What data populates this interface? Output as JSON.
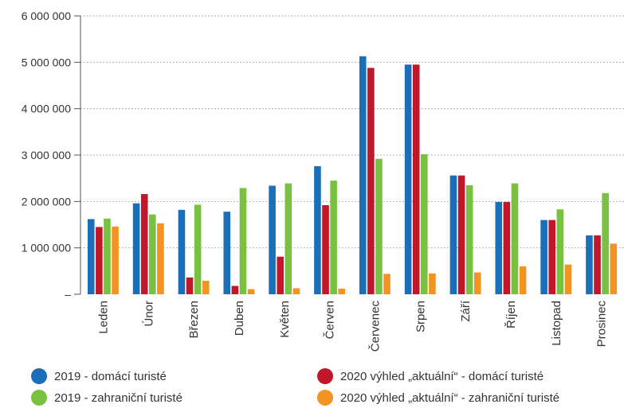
{
  "chart_data": {
    "type": "bar",
    "categories": [
      "Leden",
      "Únor",
      "Březen",
      "Duben",
      "Květen",
      "Červen",
      "Červenec",
      "Srpen",
      "Září",
      "Říjen",
      "Listopad",
      "Prosinec"
    ],
    "series": [
      {
        "name": "2019 - domácí turisté",
        "color": "#1a6fb8",
        "values": [
          1620000,
          1960000,
          1820000,
          1780000,
          2340000,
          2760000,
          5130000,
          4950000,
          2560000,
          1990000,
          1600000,
          1270000
        ]
      },
      {
        "name": "2020 výhled „aktuální“ - domácí turisté",
        "color": "#c0182a",
        "values": [
          1450000,
          2160000,
          360000,
          180000,
          810000,
          1920000,
          4880000,
          4950000,
          2560000,
          1990000,
          1600000,
          1270000
        ]
      },
      {
        "name": "2019 - zahraniční turisté",
        "color": "#7ac142",
        "values": [
          1630000,
          1720000,
          1930000,
          2290000,
          2390000,
          2450000,
          2920000,
          3020000,
          2350000,
          2390000,
          1830000,
          2180000
        ]
      },
      {
        "name": "2020 výhled „aktuální“ - zahraniční turisté",
        "color": "#f39322",
        "values": [
          1460000,
          1530000,
          290000,
          110000,
          130000,
          120000,
          440000,
          450000,
          470000,
          600000,
          640000,
          1090000
        ]
      }
    ],
    "yticks": [
      {
        "value": 0,
        "label": "–"
      },
      {
        "value": 1000000,
        "label": "1 000 000"
      },
      {
        "value": 2000000,
        "label": "2 000 000"
      },
      {
        "value": 3000000,
        "label": "3 000 000"
      },
      {
        "value": 4000000,
        "label": "4 000 000"
      },
      {
        "value": 5000000,
        "label": "5 000 000"
      },
      {
        "value": 6000000,
        "label": "6 000 000"
      }
    ],
    "ylim": [
      0,
      6000000
    ],
    "grid": true,
    "legend_position": "bottom",
    "title": "",
    "xlabel": "",
    "ylabel": ""
  }
}
